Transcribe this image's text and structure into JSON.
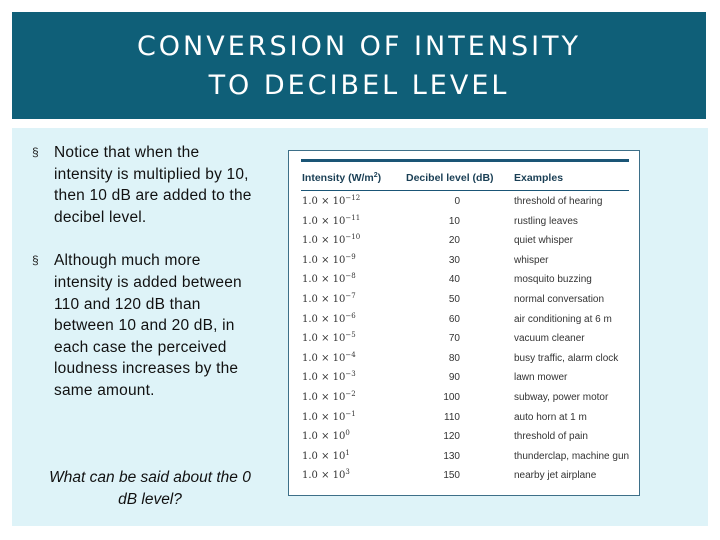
{
  "title": {
    "line1": "CONVERSION OF INTENSITY",
    "line2": "TO DECIBEL LEVEL"
  },
  "bullets": [
    {
      "marker": "§",
      "text": "Notice that when the intensity is multiplied by 10, then 10 dB are added to the decibel level."
    },
    {
      "marker": "§",
      "text": "Although much more intensity is added between 110 and 120 dB than between 10 and 20 dB, in each case the perceived loudness increases by the same amount."
    }
  ],
  "note": "What can be said about the 0 dB level?",
  "table": {
    "headers": {
      "intensity": "Intensity (W/m",
      "intensity_sup": "2",
      "intensity_end": ")",
      "decibel": "Decibel level (dB)",
      "examples": "Examples"
    },
    "rows": [
      {
        "base": "1.0 × 10",
        "exp": "−12",
        "db": "0",
        "example": "threshold of hearing"
      },
      {
        "base": "1.0 × 10",
        "exp": "−11",
        "db": "10",
        "example": "rustling leaves"
      },
      {
        "base": "1.0 × 10",
        "exp": "−10",
        "db": "20",
        "example": "quiet whisper"
      },
      {
        "base": "1.0 × 10",
        "exp": "−9",
        "db": "30",
        "example": "whisper"
      },
      {
        "base": "1.0 × 10",
        "exp": "−8",
        "db": "40",
        "example": "mosquito buzzing"
      },
      {
        "base": "1.0 × 10",
        "exp": "−7",
        "db": "50",
        "example": "normal conversation"
      },
      {
        "base": "1.0 × 10",
        "exp": "−6",
        "db": "60",
        "example": "air conditioning at 6 m"
      },
      {
        "base": "1.0 × 10",
        "exp": "−5",
        "db": "70",
        "example": "vacuum cleaner"
      },
      {
        "base": "1.0 × 10",
        "exp": "−4",
        "db": "80",
        "example": "busy traffic, alarm clock"
      },
      {
        "base": "1.0 × 10",
        "exp": "−3",
        "db": "90",
        "example": "lawn mower"
      },
      {
        "base": "1.0 × 10",
        "exp": "−2",
        "db": "100",
        "example": "subway, power motor"
      },
      {
        "base": "1.0 × 10",
        "exp": "−1",
        "db": "110",
        "example": "auto horn at 1 m"
      },
      {
        "base": "1.0 × 10",
        "exp": "0",
        "db": "120",
        "example": "threshold of pain"
      },
      {
        "base": "1.0 × 10",
        "exp": "1",
        "db": "130",
        "example": "thunderclap, machine gun"
      },
      {
        "base": "1.0 × 10",
        "exp": "3",
        "db": "150",
        "example": "nearby jet airplane"
      }
    ]
  },
  "colors": {
    "title_bar": "#0f5f78",
    "content_bg": "#def3f8",
    "table_rule": "#1a5576"
  }
}
